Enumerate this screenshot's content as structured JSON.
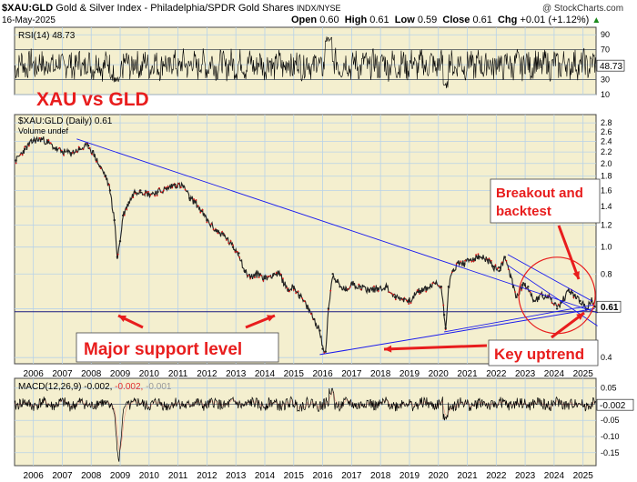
{
  "header": {
    "symbol": "$XAU:GLD",
    "description": "Gold & Silver Index - Philadelphia/SPDR Gold Shares",
    "exchange": "INDX/NYSE",
    "date": "16-May-2025",
    "watermark": "@ StockCharts.com",
    "ohlc": [
      {
        "label": "Open",
        "value": "0.60"
      },
      {
        "label": "High",
        "value": "0.61"
      },
      {
        "label": "Low",
        "value": "0.59"
      },
      {
        "label": "Close",
        "value": "0.61"
      },
      {
        "label": "Chg",
        "value": "+0.01 (+1.12%)"
      }
    ],
    "up_icon": "triangle-up-icon"
  },
  "annotations": {
    "title": "XAU vs GLD",
    "breakout": [
      "Breakout and",
      "backtest"
    ],
    "support": "Major support level",
    "uptrend": "Key uptrend"
  },
  "colors": {
    "panel_bg": "#f4efcf",
    "grid": "#b8d2e8",
    "trendline": "#1a1aee",
    "price_line": "#222222",
    "price_dot": "#dd1111",
    "annotation": "#e81d1d",
    "macd_line": "#000000",
    "signal_line": "#ee3333"
  },
  "chart_data": [
    {
      "type": "line",
      "panel": "rsi",
      "legend": "RSI(14) 48.73",
      "last_value_label": "48.73",
      "ylim": [
        10,
        100
      ],
      "yticks": [
        10,
        30,
        50,
        70,
        90
      ],
      "overbought": 70,
      "oversold": 30,
      "last_value": 48.73
    },
    {
      "type": "line",
      "panel": "price",
      "legend": "$XAU:GLD (Daily) 0.61",
      "legend2": "Volume undef",
      "last_value_label": "0.61",
      "scale": "log",
      "ylim": [
        0.38,
        3.0
      ],
      "yticks": [
        0.4,
        0.6,
        0.8,
        1.0,
        1.2,
        1.4,
        1.6,
        1.8,
        2.0,
        2.2,
        2.4,
        2.6,
        2.8
      ],
      "x": [
        2005.4,
        2005.7,
        2006.0,
        2006.3,
        2006.5,
        2006.8,
        2007.0,
        2007.3,
        2007.6,
        2007.9,
        2008.1,
        2008.3,
        2008.5,
        2008.65,
        2008.8,
        2008.9,
        2009.0,
        2009.1,
        2009.3,
        2009.5,
        2009.7,
        2010.0,
        2010.3,
        2010.6,
        2010.9,
        2011.2,
        2011.4,
        2011.6,
        2011.8,
        2012.0,
        2012.3,
        2012.6,
        2012.9,
        2013.1,
        2013.3,
        2013.5,
        2013.8,
        2014.0,
        2014.3,
        2014.5,
        2014.8,
        2015.0,
        2015.2,
        2015.5,
        2015.7,
        2015.9,
        2016.0,
        2016.1,
        2016.2,
        2016.35,
        2016.5,
        2016.6,
        2016.8,
        2017.0,
        2017.3,
        2017.6,
        2017.9,
        2018.2,
        2018.5,
        2018.8,
        2019.0,
        2019.3,
        2019.6,
        2019.9,
        2020.1,
        2020.2,
        2020.25,
        2020.35,
        2020.5,
        2020.7,
        2020.9,
        2021.1,
        2021.4,
        2021.7,
        2021.9,
        2022.1,
        2022.3,
        2022.5,
        2022.7,
        2022.9,
        2023.1,
        2023.3,
        2023.6,
        2023.9,
        2024.1,
        2024.3,
        2024.5,
        2024.7,
        2024.9,
        2025.1,
        2025.3,
        2025.4
      ],
      "values": [
        2.05,
        2.25,
        2.42,
        2.45,
        2.38,
        2.25,
        2.2,
        2.18,
        2.25,
        2.32,
        2.15,
        1.95,
        1.8,
        1.6,
        1.25,
        0.92,
        1.05,
        1.3,
        1.45,
        1.58,
        1.6,
        1.55,
        1.58,
        1.62,
        1.68,
        1.65,
        1.5,
        1.45,
        1.35,
        1.25,
        1.15,
        1.1,
        1.0,
        0.95,
        0.82,
        0.78,
        0.8,
        0.77,
        0.8,
        0.8,
        0.7,
        0.72,
        0.67,
        0.6,
        0.55,
        0.5,
        0.43,
        0.42,
        0.6,
        0.8,
        0.75,
        0.72,
        0.7,
        0.74,
        0.72,
        0.7,
        0.71,
        0.72,
        0.66,
        0.65,
        0.64,
        0.69,
        0.71,
        0.74,
        0.72,
        0.57,
        0.51,
        0.72,
        0.82,
        0.88,
        0.87,
        0.9,
        0.92,
        0.9,
        0.85,
        0.82,
        0.92,
        0.78,
        0.66,
        0.73,
        0.72,
        0.64,
        0.67,
        0.65,
        0.6,
        0.64,
        0.7,
        0.67,
        0.64,
        0.6,
        0.64,
        0.61
      ]
    },
    {
      "type": "line",
      "panel": "macd",
      "legend": "MACD(12,26,9) -0.002, -0.002, -0.001",
      "legend_parts": [
        "MACD(12,26,9)",
        "-0.002,",
        "-0.002,",
        "-0.001"
      ],
      "last_value_label": "-0.002",
      "ylim": [
        -0.19,
        0.08
      ],
      "yticks": [
        -0.15,
        -0.1,
        -0.05,
        0.0,
        0.05
      ],
      "ytick_labels": [
        "-0.15",
        "-0.10",
        "-0.05",
        "0.00",
        "0.05"
      ],
      "last_value": -0.002
    }
  ],
  "x_axis": {
    "years": [
      "2006",
      "2007",
      "2008",
      "2009",
      "2010",
      "2011",
      "2012",
      "2013",
      "2014",
      "2015",
      "2016",
      "2017",
      "2018",
      "2019",
      "2020",
      "2021",
      "2022",
      "2023",
      "2024",
      "2025"
    ]
  }
}
